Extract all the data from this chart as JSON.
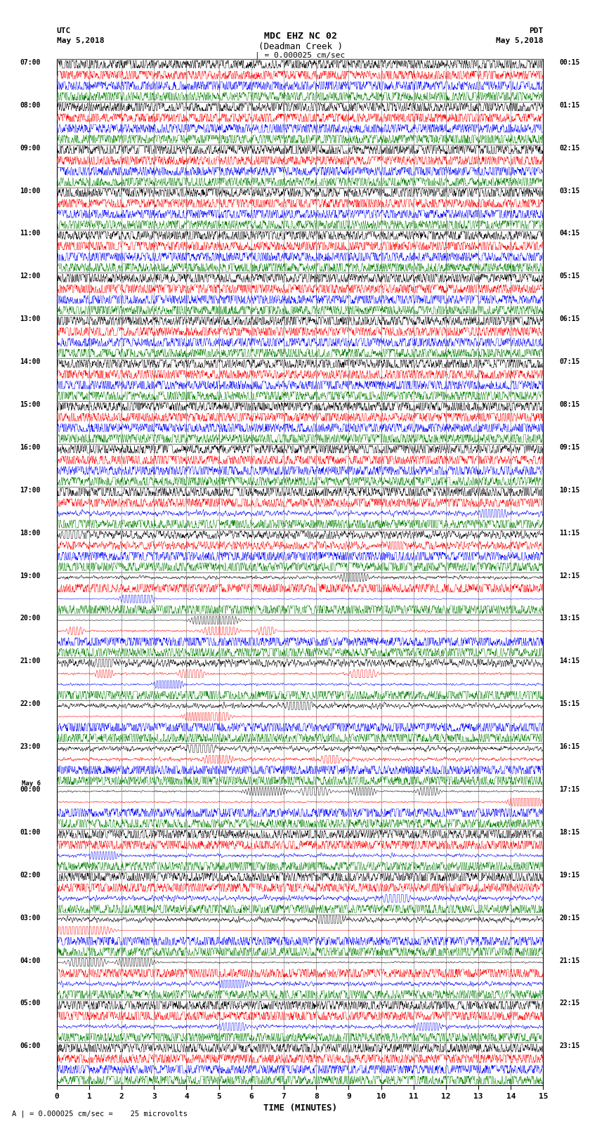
{
  "title_line1": "MDC EHZ NC 02",
  "title_line2": "(Deadman Creek )",
  "title_line3": "| = 0.000025 cm/sec",
  "left_label_top": "UTC",
  "left_label_date": "May 5,2018",
  "right_label_top": "PDT",
  "right_label_date": "May 5,2018",
  "xlabel": "TIME (MINUTES)",
  "footer": "A | = 0.000025 cm/sec =    25 microvolts",
  "utc_times": [
    "07:00",
    "08:00",
    "09:00",
    "10:00",
    "11:00",
    "12:00",
    "13:00",
    "14:00",
    "15:00",
    "16:00",
    "17:00",
    "18:00",
    "19:00",
    "20:00",
    "21:00",
    "22:00",
    "23:00",
    "May 6\n00:00",
    "01:00",
    "02:00",
    "03:00",
    "04:00",
    "05:00",
    "06:00"
  ],
  "pdt_times": [
    "00:15",
    "01:15",
    "02:15",
    "03:15",
    "04:15",
    "05:15",
    "06:15",
    "07:15",
    "08:15",
    "09:15",
    "10:15",
    "11:15",
    "12:15",
    "13:15",
    "14:15",
    "15:15",
    "16:15",
    "17:15",
    "18:15",
    "19:15",
    "20:15",
    "21:15",
    "22:15",
    "23:15"
  ],
  "trace_colors": [
    "black",
    "red",
    "blue",
    "green"
  ],
  "noise_std": 0.012,
  "xlim": [
    0,
    15
  ],
  "num_hours": 24,
  "traces_per_hour": 4,
  "fig_width": 8.5,
  "fig_height": 16.13,
  "seismic_events": [
    [
      11,
      0,
      0.5,
      0.25,
      0.15
    ],
    [
      11,
      1,
      10.5,
      0.3,
      0.1
    ],
    [
      12,
      0,
      9.2,
      0.8,
      0.2
    ],
    [
      12,
      2,
      2.5,
      1.5,
      0.25
    ],
    [
      12,
      2,
      2.7,
      1.2,
      0.2
    ],
    [
      13,
      0,
      4.8,
      2.0,
      0.3
    ],
    [
      13,
      0,
      5.2,
      1.5,
      0.25
    ],
    [
      13,
      1,
      0.6,
      0.4,
      0.15
    ],
    [
      13,
      1,
      5.1,
      1.2,
      0.25
    ],
    [
      13,
      1,
      6.5,
      0.6,
      0.15
    ],
    [
      14,
      1,
      1.5,
      0.5,
      0.15
    ],
    [
      14,
      1,
      4.2,
      0.8,
      0.2
    ],
    [
      14,
      1,
      9.5,
      1.0,
      0.2
    ],
    [
      14,
      2,
      3.5,
      1.2,
      0.2
    ],
    [
      14,
      0,
      1.5,
      0.3,
      0.15
    ],
    [
      15,
      0,
      7.5,
      0.5,
      0.2
    ],
    [
      15,
      1,
      4.5,
      1.5,
      0.25
    ],
    [
      15,
      1,
      5.0,
      1.2,
      0.2
    ],
    [
      16,
      0,
      4.5,
      0.5,
      0.2
    ],
    [
      16,
      1,
      5.0,
      0.6,
      0.2
    ],
    [
      16,
      1,
      8.5,
      0.5,
      0.15
    ],
    [
      10,
      2,
      13.5,
      0.5,
      0.2
    ],
    [
      17,
      0,
      6.5,
      1.0,
      0.3
    ],
    [
      17,
      0,
      8.0,
      0.8,
      0.25
    ],
    [
      17,
      0,
      9.5,
      0.7,
      0.2
    ],
    [
      17,
      0,
      11.5,
      0.6,
      0.2
    ],
    [
      17,
      1,
      14.5,
      1.5,
      0.25
    ],
    [
      18,
      2,
      1.5,
      0.8,
      0.2
    ],
    [
      19,
      2,
      10.5,
      0.5,
      0.2
    ],
    [
      20,
      1,
      0.8,
      4.0,
      0.5
    ],
    [
      20,
      0,
      8.5,
      0.5,
      0.2
    ],
    [
      21,
      0,
      1.0,
      1.2,
      0.3
    ],
    [
      21,
      0,
      2.5,
      1.0,
      0.3
    ],
    [
      21,
      2,
      5.5,
      0.6,
      0.2
    ],
    [
      22,
      2,
      5.5,
      0.5,
      0.2
    ],
    [
      22,
      2,
      11.5,
      0.5,
      0.2
    ]
  ]
}
